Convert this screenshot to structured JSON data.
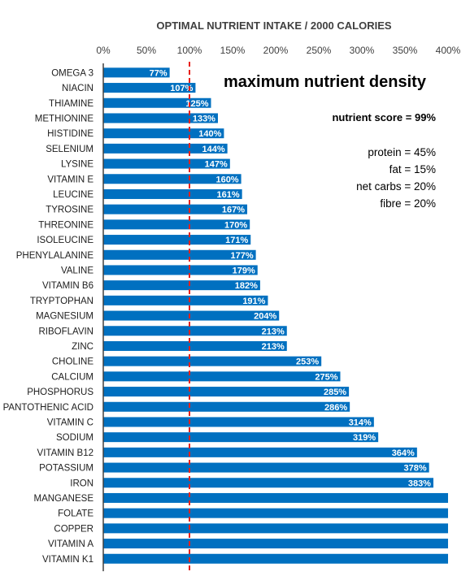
{
  "chart_data": {
    "type": "bar",
    "orientation": "horizontal",
    "title": "OPTIMAL NUTRIENT INTAKE / 2000 CALORIES",
    "x_ticks": [
      "0%",
      "50%",
      "100%",
      "150%",
      "200%",
      "250%",
      "300%",
      "350%",
      "400%"
    ],
    "xlim": [
      0,
      400
    ],
    "reference_line": {
      "value": 100,
      "style": "dashed",
      "color": "#e8201a"
    },
    "bar_color": "#0070c0",
    "grid": false,
    "categories": [
      "OMEGA 3",
      "NIACIN",
      "THIAMINE",
      "METHIONINE",
      "HISTIDINE",
      "SELENIUM",
      "LYSINE",
      "VITAMIN E",
      "LEUCINE",
      "TYROSINE",
      "THREONINE",
      "ISOLEUCINE",
      "PHENYLALANINE",
      "VALINE",
      "VITAMIN B6",
      "TRYPTOPHAN",
      "MAGNESIUM",
      "RIBOFLAVIN",
      "ZINC",
      "CHOLINE",
      "CALCIUM",
      "PHOSPHORUS",
      "PANTOTHENIC ACID",
      "VITAMIN C",
      "SODIUM",
      "VITAMIN B12",
      "POTASSIUM",
      "IRON",
      "MANGANESE",
      "FOLATE",
      "COPPER",
      "VITAMIN A",
      "VITAMIN K1"
    ],
    "values": [
      77,
      107,
      125,
      133,
      140,
      144,
      147,
      160,
      161,
      167,
      170,
      171,
      177,
      179,
      182,
      191,
      204,
      213,
      213,
      253,
      275,
      285,
      286,
      314,
      319,
      364,
      378,
      383,
      400,
      400,
      400,
      400,
      400
    ],
    "data_labels": [
      "77%",
      "107%",
      "125%",
      "133%",
      "140%",
      "144%",
      "147%",
      "160%",
      "161%",
      "167%",
      "170%",
      "171%",
      "177%",
      "179%",
      "182%",
      "191%",
      "204%",
      "213%",
      "213%",
      "253%",
      "275%",
      "285%",
      "286%",
      "314%",
      "319%",
      "364%",
      "378%",
      "383%",
      "",
      "",
      "",
      "",
      ""
    ]
  },
  "annotations": {
    "headline": "maximum nutrient density",
    "score": "nutrient score = 99%",
    "macros": [
      "protein = 45%",
      "fat = 15%",
      "net carbs = 20%",
      "fibre = 20%"
    ]
  }
}
